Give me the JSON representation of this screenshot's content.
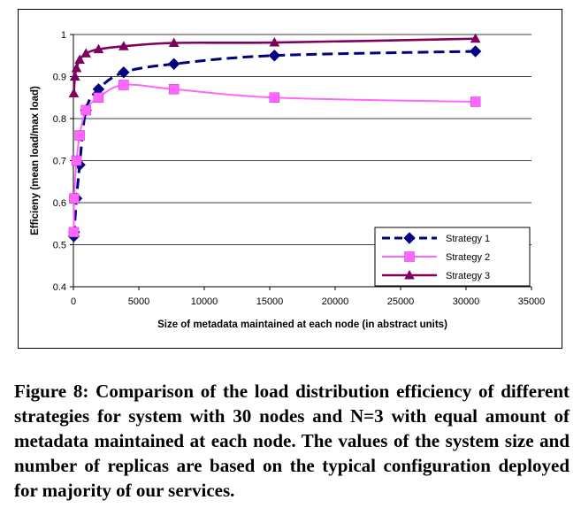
{
  "chart_data": {
    "type": "line",
    "title": "",
    "xlabel": "Size of metadata maintained at each node (in abstract units)",
    "ylabel": "Efficieny (mean load/max load)",
    "xlim": [
      0,
      35000
    ],
    "ylim": [
      0.4,
      1.0
    ],
    "xticks": [
      0,
      5000,
      10000,
      15000,
      20000,
      25000,
      30000,
      35000
    ],
    "yticks": [
      0.4,
      0.5,
      0.6,
      0.7,
      0.8,
      0.9,
      1.0
    ],
    "xtick_labels": [
      "0",
      "5000",
      "10000",
      "15000",
      "20000",
      "25000",
      "30000",
      "35000"
    ],
    "ytick_labels": [
      "0.4",
      "0.5",
      "0.6",
      "0.7",
      "0.8",
      "0.9",
      "1"
    ],
    "grid": "horizontal",
    "legend_position": "bottom-right",
    "series": [
      {
        "name": "Strategy 1",
        "color": "#000080",
        "marker": "diamond",
        "line_style": "dashed",
        "x": [
          30,
          60,
          240,
          480,
          960,
          1920,
          3840,
          7680,
          15360,
          30720
        ],
        "y": [
          0.52,
          0.53,
          0.61,
          0.69,
          0.82,
          0.87,
          0.91,
          0.93,
          0.95,
          0.96
        ]
      },
      {
        "name": "Strategy 2",
        "color": "#ff66ff",
        "marker": "square",
        "line_style": "solid",
        "x": [
          30,
          60,
          240,
          480,
          960,
          1920,
          3840,
          7680,
          15360,
          30720
        ],
        "y": [
          0.53,
          0.61,
          0.7,
          0.76,
          0.82,
          0.85,
          0.88,
          0.87,
          0.85,
          0.84
        ]
      },
      {
        "name": "Strategy 3",
        "color": "#800060",
        "marker": "triangle",
        "line_style": "solid",
        "x": [
          30,
          120,
          240,
          480,
          960,
          1920,
          3840,
          7680,
          15360,
          30720
        ],
        "y": [
          0.86,
          0.9,
          0.92,
          0.94,
          0.955,
          0.965,
          0.972,
          0.98,
          0.981,
          0.99
        ]
      }
    ]
  },
  "caption": {
    "text": "Figure 8: Comparison of the load distribution efficiency of different strategies for system with 30 nodes and N=3 with equal amount of metadata maintained at each node. The values of the system size and number of replicas are based on the typical configuration deployed for majority of our services."
  }
}
